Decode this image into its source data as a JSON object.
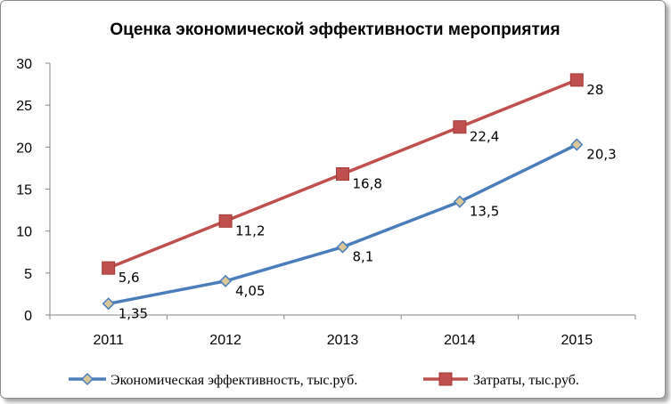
{
  "chart_data": {
    "type": "line",
    "title": "Оценка экономической эффективности мероприятия",
    "xlabel": "",
    "ylabel": "",
    "categories": [
      "2011",
      "2012",
      "2013",
      "2014",
      "2015"
    ],
    "ylim": [
      0,
      30
    ],
    "yticks": [
      "0",
      "5",
      "10",
      "15",
      "20",
      "25",
      "30"
    ],
    "grid": false,
    "legend_position": "bottom",
    "series": [
      {
        "name": "Экономическая эффективность, тыс.руб.",
        "values": [
          1.35,
          4.05,
          8.1,
          13.5,
          20.3
        ],
        "labels": [
          "1,35",
          "4,05",
          "8,1",
          "13,5",
          "20,3"
        ],
        "color": "#4a7ebb",
        "marker": "diamond",
        "marker_fill": "#d9c79a"
      },
      {
        "name": "Затраты, тыс.руб.",
        "values": [
          5.6,
          11.2,
          16.8,
          22.4,
          28
        ],
        "labels": [
          "5,6",
          "11,2",
          "16,8",
          "22,4",
          "28"
        ],
        "color": "#c0504d",
        "marker": "square",
        "marker_fill": "#c0504d"
      }
    ]
  }
}
